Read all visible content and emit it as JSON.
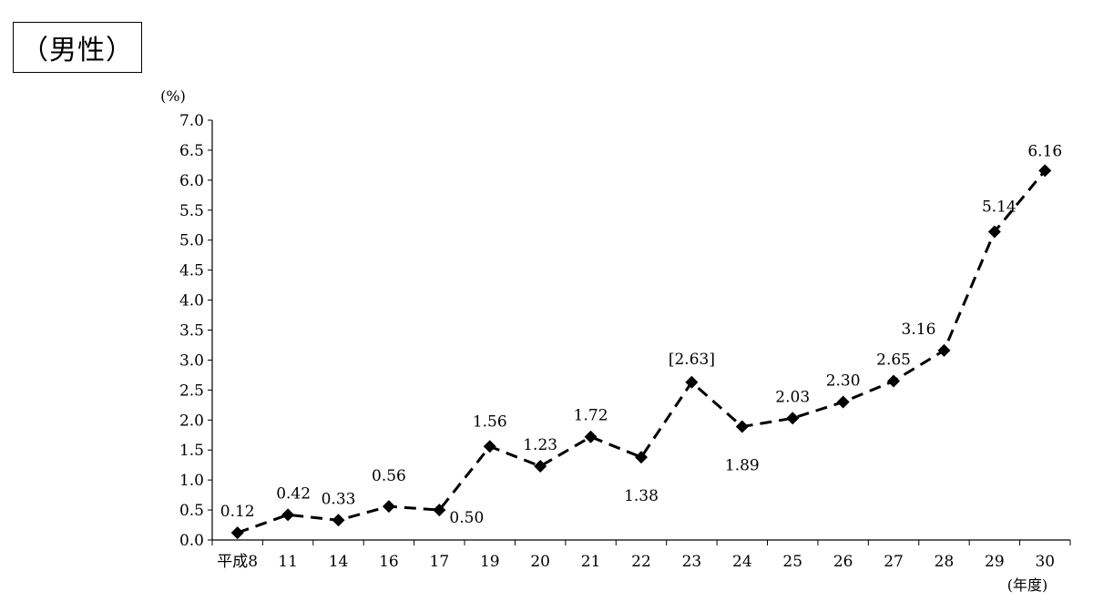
{
  "title": "（男性）",
  "chart_data": {
    "type": "line",
    "title": "（男性）",
    "y_unit_label": "(%)",
    "x_unit_label": "(年度)",
    "categories": [
      "平成8",
      "11",
      "14",
      "16",
      "17",
      "19",
      "20",
      "21",
      "22",
      "23",
      "24",
      "25",
      "26",
      "27",
      "28",
      "29",
      "30"
    ],
    "values": [
      0.12,
      0.42,
      0.33,
      0.56,
      0.5,
      1.56,
      1.23,
      1.72,
      1.38,
      2.63,
      1.89,
      2.03,
      2.3,
      2.65,
      3.16,
      5.14,
      6.16
    ],
    "data_labels": [
      "0.12",
      "0.42",
      "0.33",
      "0.56",
      "0.50",
      "1.56",
      "1.23",
      "1.72",
      "1.38",
      "[2.63]",
      "1.89",
      "2.03",
      "2.30",
      "2.65",
      "3.16",
      "5.14",
      "6.16"
    ],
    "ylim": [
      0,
      7.0
    ],
    "y_ticks": [
      "0.0",
      "0.5",
      "1.0",
      "1.5",
      "2.0",
      "2.5",
      "3.0",
      "3.5",
      "4.0",
      "4.5",
      "5.0",
      "5.5",
      "6.0",
      "6.5",
      "7.0"
    ],
    "line_style": "dashed",
    "marker": "diamond",
    "grid": false,
    "colors": {
      "line": "#000000",
      "marker": "#000000"
    }
  }
}
